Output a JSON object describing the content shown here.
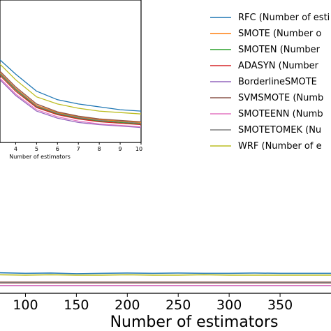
{
  "chart_data": [
    {
      "type": "line",
      "panel": "main",
      "xlabel": "Number of estimators",
      "ylabel": "",
      "xlim": [
        75,
        400
      ],
      "ylim": [
        0,
        1
      ],
      "x_ticks": [
        100,
        150,
        200,
        250,
        300,
        350
      ],
      "x": [
        75,
        100,
        125,
        150,
        175,
        200,
        225,
        250,
        275,
        300,
        325,
        350,
        375,
        400
      ],
      "series": [
        {
          "name": "RFC (Number of esti",
          "color": "#1f77b4",
          "values": [
            0.07,
            0.068,
            0.069,
            0.067,
            0.068,
            0.069,
            0.068,
            0.069,
            0.068,
            0.068,
            0.069,
            0.068,
            0.068,
            0.068
          ]
        },
        {
          "name": "SMOTE (Number o",
          "color": "#ff7f0e",
          "values": [
            0.037,
            0.037,
            0.037,
            0.037,
            0.037,
            0.037,
            0.037,
            0.037,
            0.037,
            0.037,
            0.037,
            0.037,
            0.037,
            0.037
          ]
        },
        {
          "name": "SMOTEN (Number",
          "color": "#2ca02c",
          "values": [
            0.036,
            0.036,
            0.036,
            0.036,
            0.036,
            0.036,
            0.036,
            0.036,
            0.036,
            0.036,
            0.036,
            0.036,
            0.036,
            0.036
          ]
        },
        {
          "name": "ADASYN (Number",
          "color": "#d62728",
          "values": [
            0.035,
            0.035,
            0.035,
            0.035,
            0.035,
            0.035,
            0.035,
            0.035,
            0.035,
            0.035,
            0.035,
            0.035,
            0.035,
            0.035
          ]
        },
        {
          "name": "BorderlineSMOTE",
          "color": "#9467bd",
          "values": [
            0.026,
            0.026,
            0.026,
            0.026,
            0.026,
            0.026,
            0.026,
            0.026,
            0.026,
            0.026,
            0.026,
            0.026,
            0.026,
            0.026
          ]
        },
        {
          "name": "SVMSMOTE (Numb",
          "color": "#8c564b",
          "values": [
            0.038,
            0.038,
            0.038,
            0.038,
            0.038,
            0.038,
            0.038,
            0.038,
            0.038,
            0.038,
            0.038,
            0.038,
            0.038,
            0.038
          ]
        },
        {
          "name": "SMOTEENN (Numb",
          "color": "#e377c2",
          "values": [
            0.027,
            0.027,
            0.027,
            0.027,
            0.027,
            0.027,
            0.027,
            0.027,
            0.027,
            0.027,
            0.027,
            0.027,
            0.027,
            0.027
          ]
        },
        {
          "name": "SMOTETOMEK (Nu",
          "color": "#7f7f7f",
          "values": [
            0.036,
            0.036,
            0.036,
            0.036,
            0.036,
            0.036,
            0.036,
            0.036,
            0.036,
            0.036,
            0.036,
            0.036,
            0.036,
            0.036
          ]
        },
        {
          "name": "WRF (Number of e",
          "color": "#bcbd22",
          "values": [
            0.063,
            0.062,
            0.063,
            0.062,
            0.062,
            0.063,
            0.062,
            0.062,
            0.063,
            0.062,
            0.062,
            0.062,
            0.062,
            0.062
          ]
        }
      ]
    },
    {
      "type": "line",
      "panel": "inset",
      "xlabel": "Number of estimators",
      "xlim": [
        3.25,
        10
      ],
      "ylim": [
        0,
        1
      ],
      "x_ticks": [
        4,
        5,
        6,
        7,
        8,
        9,
        10
      ],
      "x": [
        3.25,
        4,
        5,
        6,
        7,
        8,
        9,
        10
      ],
      "series": [
        {
          "name": "RFC",
          "color": "#1f77b4",
          "values": [
            0.58,
            0.48,
            0.36,
            0.3,
            0.27,
            0.25,
            0.23,
            0.22
          ]
        },
        {
          "name": "WRF",
          "color": "#bcbd22",
          "values": [
            0.55,
            0.44,
            0.32,
            0.27,
            0.24,
            0.22,
            0.21,
            0.2
          ]
        },
        {
          "name": "SMOTE",
          "color": "#ff7f0e",
          "values": [
            0.49,
            0.38,
            0.26,
            0.21,
            0.18,
            0.16,
            0.15,
            0.14
          ]
        },
        {
          "name": "SMOTEN",
          "color": "#2ca02c",
          "values": [
            0.48,
            0.37,
            0.25,
            0.2,
            0.17,
            0.15,
            0.14,
            0.13
          ]
        },
        {
          "name": "ADASYN",
          "color": "#d62728",
          "values": [
            0.47,
            0.36,
            0.245,
            0.195,
            0.165,
            0.145,
            0.135,
            0.125
          ]
        },
        {
          "name": "BorderlineSMOTE",
          "color": "#9467bd",
          "values": [
            0.44,
            0.33,
            0.22,
            0.17,
            0.14,
            0.125,
            0.115,
            0.105
          ]
        },
        {
          "name": "SVMSMOTE",
          "color": "#8c564b",
          "values": [
            0.5,
            0.39,
            0.27,
            0.215,
            0.185,
            0.165,
            0.155,
            0.145
          ]
        },
        {
          "name": "SMOTEENN",
          "color": "#e377c2",
          "values": [
            0.45,
            0.34,
            0.23,
            0.18,
            0.15,
            0.13,
            0.12,
            0.11
          ]
        },
        {
          "name": "SMOTETOMEK",
          "color": "#7f7f7f",
          "values": [
            0.485,
            0.375,
            0.255,
            0.205,
            0.175,
            0.155,
            0.145,
            0.135
          ]
        }
      ]
    }
  ]
}
